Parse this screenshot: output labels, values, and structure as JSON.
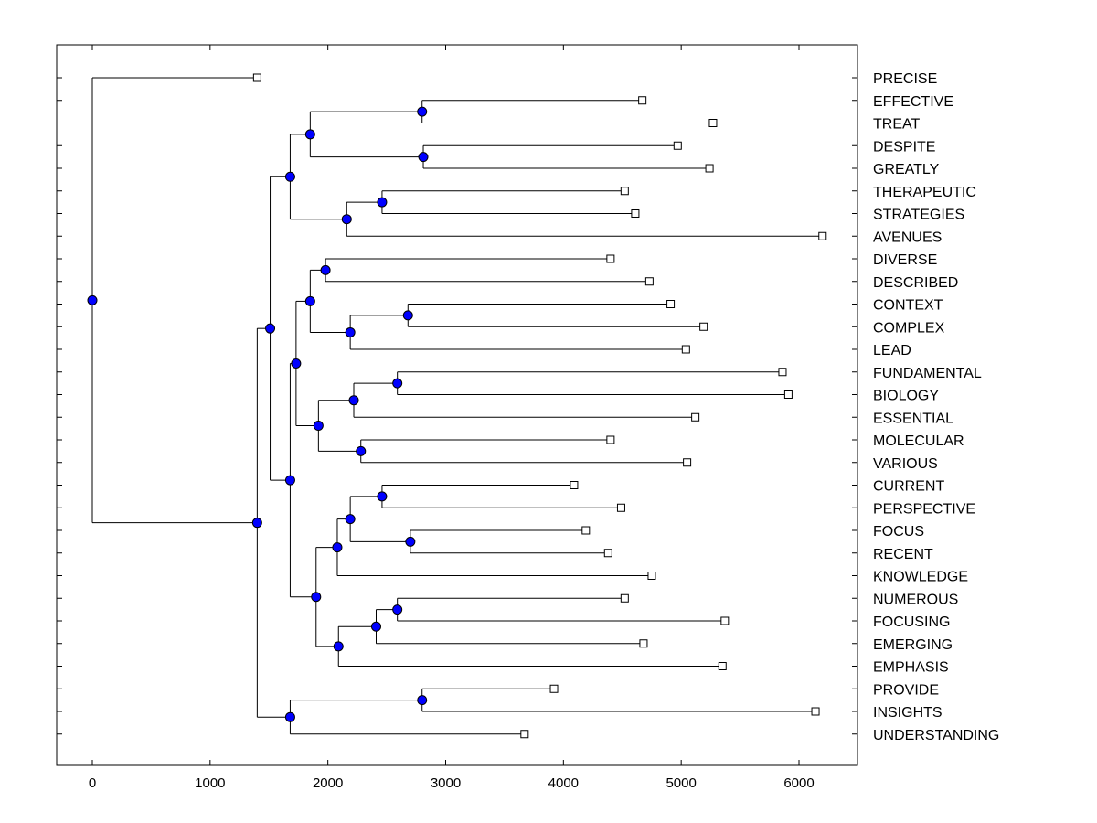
{
  "chart_data": {
    "type": "dendrogram",
    "title": "",
    "xlabel": "",
    "ylabel": "",
    "xlim": [
      -300,
      6500
    ],
    "xticks": [
      0,
      1000,
      2000,
      3000,
      4000,
      5000,
      6000
    ],
    "xtick_labels": [
      "0",
      "1000",
      "2000",
      "3000",
      "4000",
      "5000",
      "6000"
    ],
    "marker_color": "#0000ff",
    "line_color": "#000000",
    "leaves": [
      {
        "label": "PRECISE",
        "x": 1400
      },
      {
        "label": "EFFECTIVE",
        "x": 4670
      },
      {
        "label": "TREAT",
        "x": 5270
      },
      {
        "label": "DESPITE",
        "x": 4970
      },
      {
        "label": "GREATLY",
        "x": 5240
      },
      {
        "label": "THERAPEUTIC",
        "x": 4520
      },
      {
        "label": "STRATEGIES",
        "x": 4610
      },
      {
        "label": "AVENUES",
        "x": 6200
      },
      {
        "label": "DIVERSE",
        "x": 4400
      },
      {
        "label": "DESCRIBED",
        "x": 4730
      },
      {
        "label": "CONTEXT",
        "x": 4910
      },
      {
        "label": "COMPLEX",
        "x": 5190
      },
      {
        "label": "LEAD",
        "x": 5040
      },
      {
        "label": "FUNDAMENTAL",
        "x": 5860
      },
      {
        "label": "BIOLOGY",
        "x": 5910
      },
      {
        "label": "ESSENTIAL",
        "x": 5120
      },
      {
        "label": "MOLECULAR",
        "x": 4400
      },
      {
        "label": "VARIOUS",
        "x": 5050
      },
      {
        "label": "CURRENT",
        "x": 4090
      },
      {
        "label": "PERSPECTIVE",
        "x": 4490
      },
      {
        "label": "FOCUS",
        "x": 4190
      },
      {
        "label": "RECENT",
        "x": 4380
      },
      {
        "label": "KNOWLEDGE",
        "x": 4750
      },
      {
        "label": "NUMEROUS",
        "x": 4520
      },
      {
        "label": "FOCUSING",
        "x": 5370
      },
      {
        "label": "EMERGING",
        "x": 4680
      },
      {
        "label": "EMPHASIS",
        "x": 5350
      },
      {
        "label": "PROVIDE",
        "x": 3920
      },
      {
        "label": "INSIGHTS",
        "x": 6140
      },
      {
        "label": "UNDERSTANDING",
        "x": 3670
      }
    ],
    "merges": [
      {
        "id": "n1",
        "x": 2800,
        "children": [
          "EFFECTIVE",
          "TREAT"
        ]
      },
      {
        "id": "n2",
        "x": 2810,
        "children": [
          "DESPITE",
          "GREATLY"
        ]
      },
      {
        "id": "n3",
        "x": 1850,
        "children": [
          "n1",
          "n2"
        ]
      },
      {
        "id": "n4",
        "x": 2460,
        "children": [
          "THERAPEUTIC",
          "STRATEGIES"
        ]
      },
      {
        "id": "n5",
        "x": 2160,
        "children": [
          "n4",
          "AVENUES"
        ]
      },
      {
        "id": "n6",
        "x": 1680,
        "children": [
          "n3",
          "n5"
        ]
      },
      {
        "id": "n7",
        "x": 1980,
        "children": [
          "DIVERSE",
          "DESCRIBED"
        ]
      },
      {
        "id": "n8",
        "x": 2680,
        "children": [
          "CONTEXT",
          "COMPLEX"
        ]
      },
      {
        "id": "n9",
        "x": 2190,
        "children": [
          "n8",
          "LEAD"
        ]
      },
      {
        "id": "n10",
        "x": 1850,
        "children": [
          "n7",
          "n9"
        ]
      },
      {
        "id": "n11",
        "x": 2590,
        "children": [
          "FUNDAMENTAL",
          "BIOLOGY"
        ]
      },
      {
        "id": "n12",
        "x": 2220,
        "children": [
          "n11",
          "ESSENTIAL"
        ]
      },
      {
        "id": "n13",
        "x": 2280,
        "children": [
          "MOLECULAR",
          "VARIOUS"
        ]
      },
      {
        "id": "n14",
        "x": 1920,
        "children": [
          "n12",
          "n13"
        ]
      },
      {
        "id": "n15",
        "x": 1730,
        "children": [
          "n10",
          "n14"
        ]
      },
      {
        "id": "n16",
        "x": 2460,
        "children": [
          "CURRENT",
          "PERSPECTIVE"
        ]
      },
      {
        "id": "n17",
        "x": 2700,
        "children": [
          "FOCUS",
          "RECENT"
        ]
      },
      {
        "id": "n18",
        "x": 2190,
        "children": [
          "n16",
          "n17"
        ]
      },
      {
        "id": "n19",
        "x": 2080,
        "children": [
          "n18",
          "KNOWLEDGE"
        ]
      },
      {
        "id": "n20",
        "x": 2590,
        "children": [
          "NUMEROUS",
          "FOCUSING"
        ]
      },
      {
        "id": "n21",
        "x": 2410,
        "children": [
          "n20",
          "EMERGING"
        ]
      },
      {
        "id": "n22",
        "x": 2090,
        "children": [
          "n21",
          "EMPHASIS"
        ]
      },
      {
        "id": "n23",
        "x": 1900,
        "children": [
          "n19",
          "n22"
        ]
      },
      {
        "id": "n24",
        "x": 1680,
        "children": [
          "n15",
          "n23"
        ]
      },
      {
        "id": "n25",
        "x": 1510,
        "children": [
          "n6",
          "n24"
        ]
      },
      {
        "id": "n26",
        "x": 2800,
        "children": [
          "PROVIDE",
          "INSIGHTS"
        ]
      },
      {
        "id": "n27",
        "x": 1680,
        "children": [
          "n26",
          "UNDERSTANDING"
        ]
      },
      {
        "id": "n28",
        "x": 1400,
        "children": [
          "n25",
          "n27"
        ]
      },
      {
        "id": "n29",
        "x": 0,
        "children": [
          "PRECISE",
          "n28"
        ]
      }
    ]
  }
}
